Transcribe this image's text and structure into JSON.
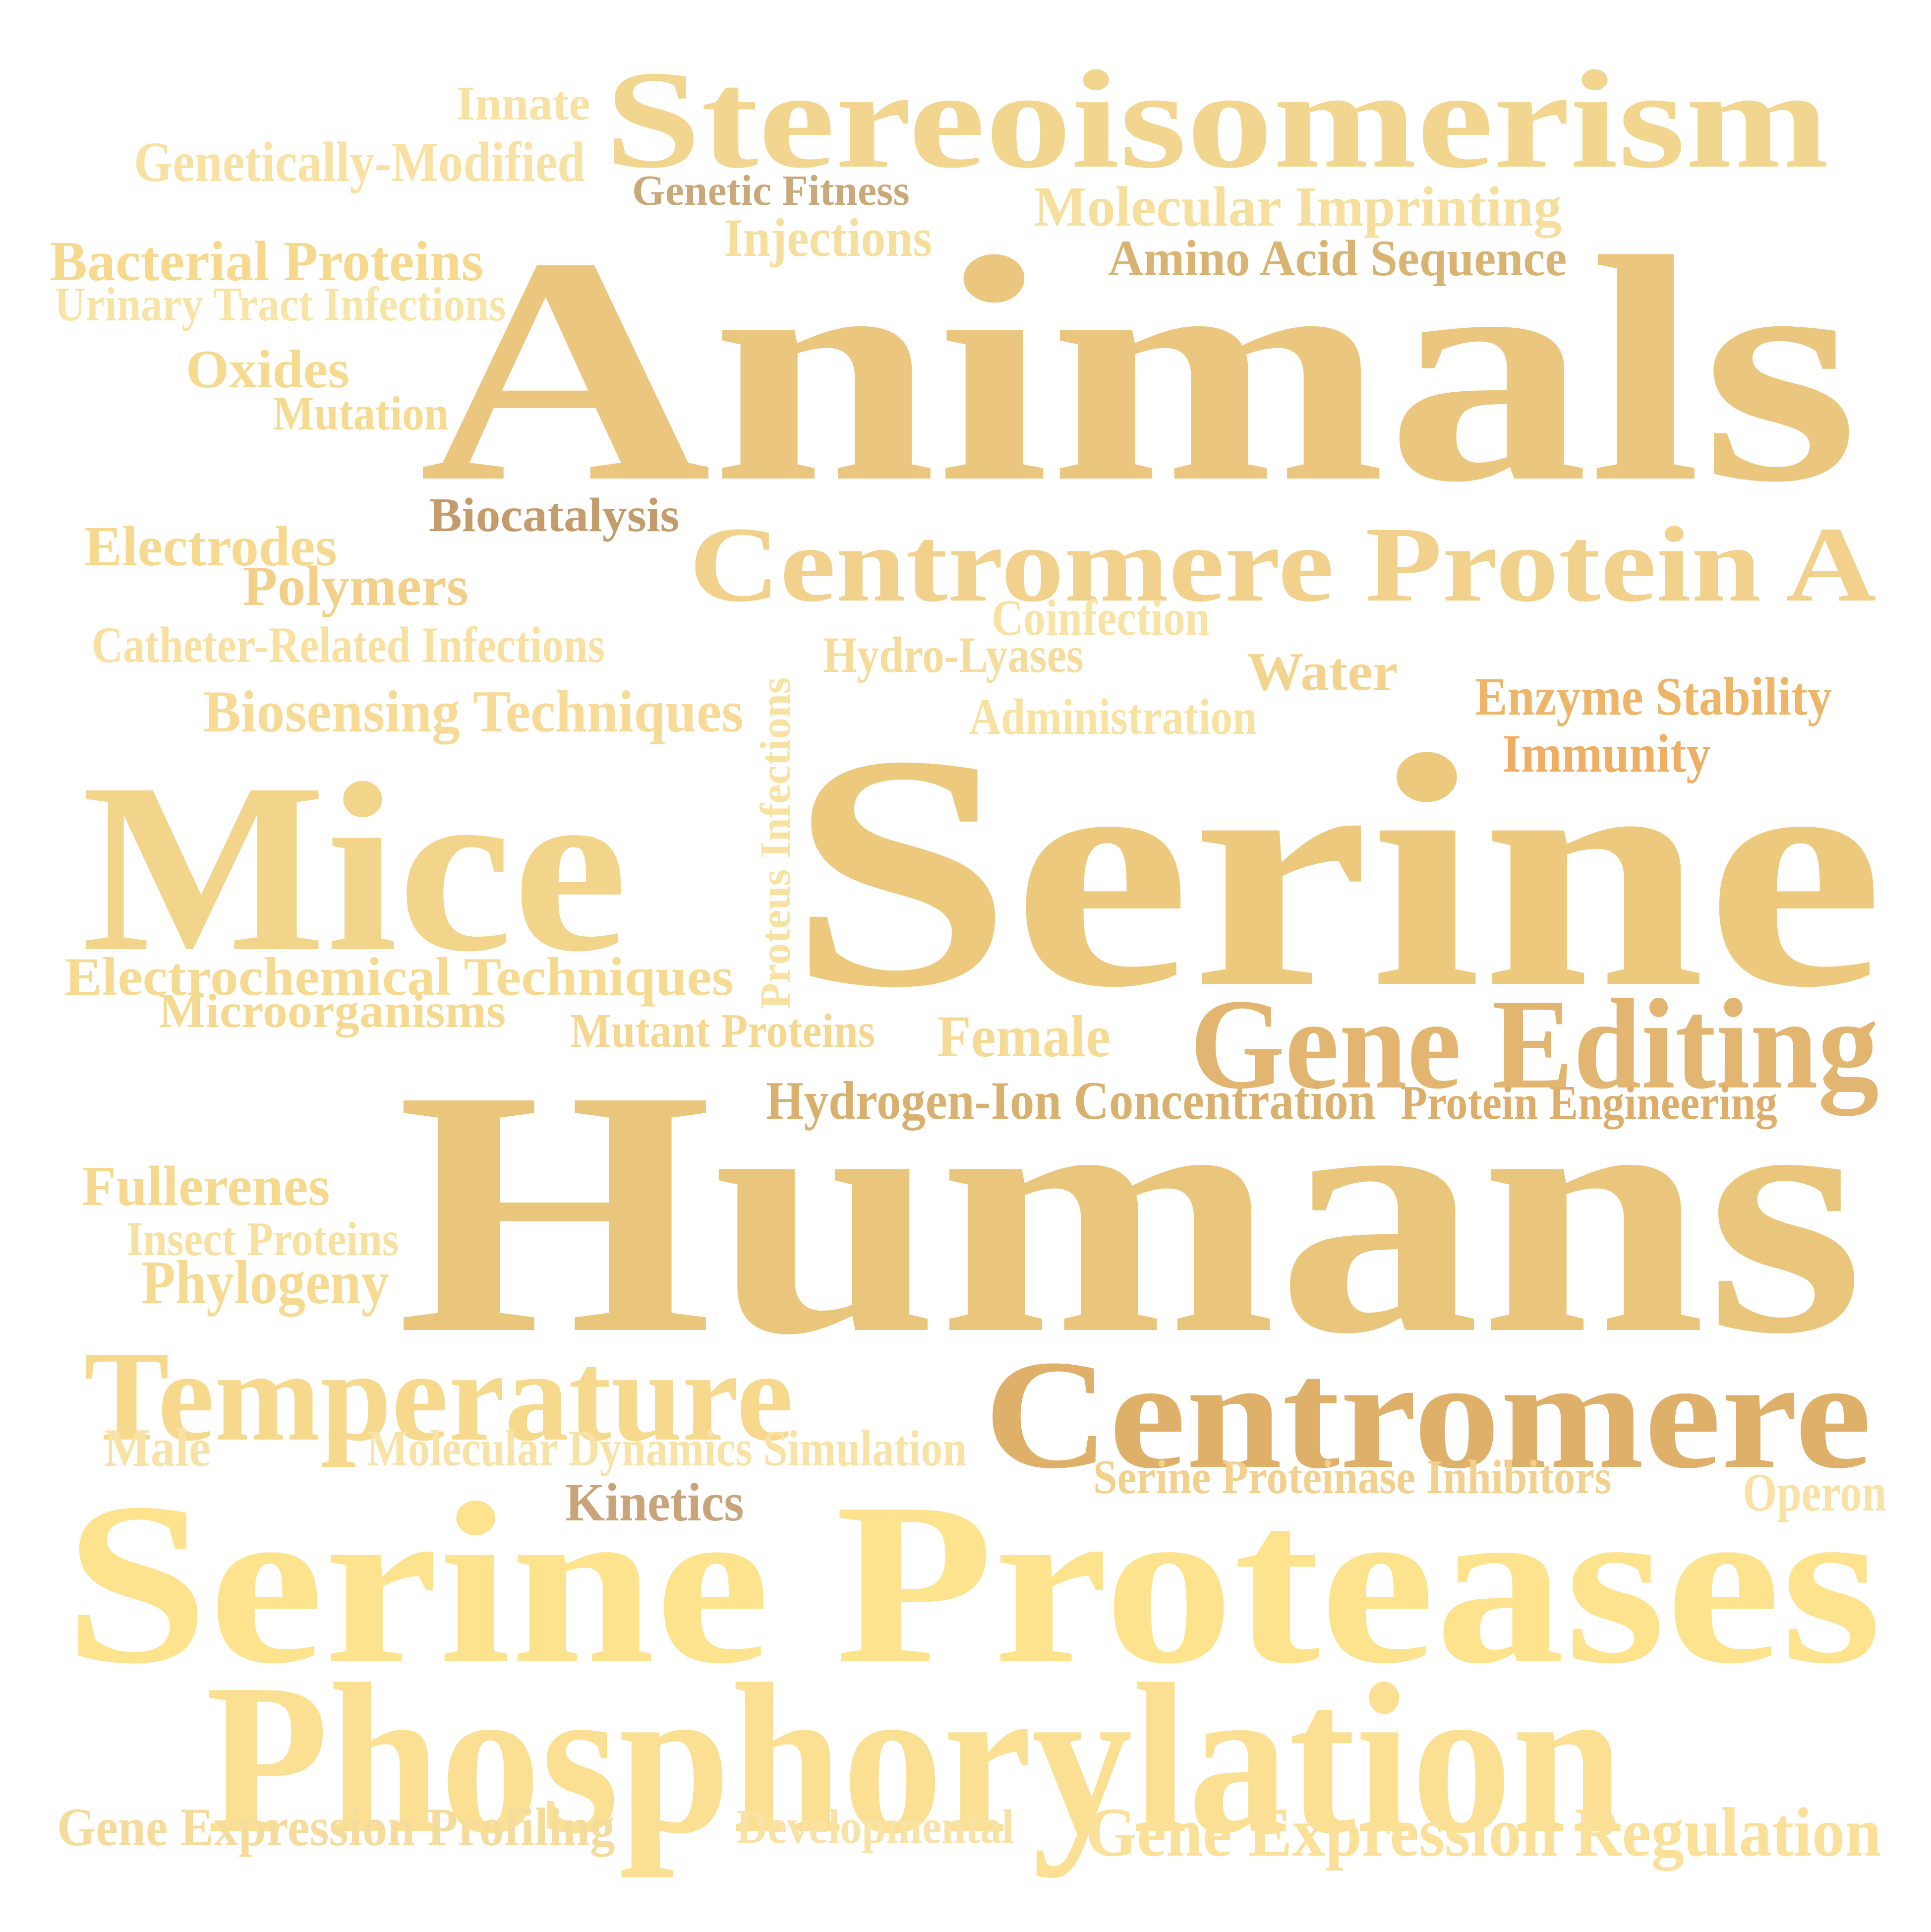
{
  "word_cloud": {
    "words": [
      {
        "text": "Stereoisomerism",
        "color": "#f2d68f"
      },
      {
        "text": "Innate",
        "color": "#f8e1a2"
      },
      {
        "text": "Genetically-Modified",
        "color": "#f8e1a2"
      },
      {
        "text": "Genetic Fitness",
        "color": "#c9a87a"
      },
      {
        "text": "Molecular Imprinting",
        "color": "#f6de9c"
      },
      {
        "text": "Injections",
        "color": "#f6de9c"
      },
      {
        "text": "Amino Acid Sequence",
        "color": "#d8b372"
      },
      {
        "text": "Bacterial Proteins",
        "color": "#f6d98d"
      },
      {
        "text": "Urinary Tract Infections",
        "color": "#f8e4a6"
      },
      {
        "text": "Animals",
        "color": "#ebc67e"
      },
      {
        "text": "Oxides",
        "color": "#f6da90"
      },
      {
        "text": "Mutation",
        "color": "#f6da90"
      },
      {
        "text": "Biocatalysis",
        "color": "#c49c6c"
      },
      {
        "text": "Electrodes",
        "color": "#f6d98e"
      },
      {
        "text": "Polymers",
        "color": "#f2d08a"
      },
      {
        "text": "Centromere Protein A",
        "color": "#f1d18b"
      },
      {
        "text": "Coinfection",
        "color": "#f8e2a4"
      },
      {
        "text": "Catheter-Related Infections",
        "color": "#f8e0a0"
      },
      {
        "text": "Hydro-Lyases",
        "color": "#f6dc9a"
      },
      {
        "text": "Water",
        "color": "#f3d48e"
      },
      {
        "text": "Enzyme Stability",
        "color": "#ecb567"
      },
      {
        "text": "Biosensing Techniques",
        "color": "#f6da96"
      },
      {
        "text": "Administration",
        "color": "#f8e2a2"
      },
      {
        "text": "Immunity",
        "color": "#eeae63"
      },
      {
        "text": "Proteus Infections",
        "color": "#f8e2a2"
      },
      {
        "text": "Mice",
        "color": "#f2d48b"
      },
      {
        "text": "Serine",
        "color": "#edc97e"
      },
      {
        "text": "Electrochemical Techniques",
        "color": "#f6da92"
      },
      {
        "text": "Microorganisms",
        "color": "#f6d990"
      },
      {
        "text": "Mutant Proteins",
        "color": "#f4d790"
      },
      {
        "text": "Female",
        "color": "#f6db96"
      },
      {
        "text": "Gene Editing",
        "color": "#e2b570"
      },
      {
        "text": "Humans",
        "color": "#eac57c"
      },
      {
        "text": "Hydrogen-Ion Concentration",
        "color": "#d9b06e"
      },
      {
        "text": "Protein Engineering",
        "color": "#ddad69"
      },
      {
        "text": "Fullerenes",
        "color": "#f6d98e"
      },
      {
        "text": "Insect Proteins",
        "color": "#f8e0a0"
      },
      {
        "text": "Phylogeny",
        "color": "#f6da92"
      },
      {
        "text": "Temperature",
        "color": "#f6d98d"
      },
      {
        "text": "Centromere",
        "color": "#deb06a"
      },
      {
        "text": "Male",
        "color": "#f8e2a6"
      },
      {
        "text": "Molecular Dynamics Simulation",
        "color": "#f8e2a6"
      },
      {
        "text": "Kinetics",
        "color": "#c9a47a"
      },
      {
        "text": "Serine Proteinase Inhibitors",
        "color": "#f2d08e"
      },
      {
        "text": "Operon",
        "color": "#f8e2a6"
      },
      {
        "text": "Serine Proteases",
        "color": "#fde38e"
      },
      {
        "text": "Phosphorylation",
        "color": "#fbe094"
      },
      {
        "text": "Gene Expression Profiling",
        "color": "#f6dc9c"
      },
      {
        "text": "Developmental",
        "color": "#f8e2a6"
      },
      {
        "text": "Gene Expression Regulation",
        "color": "#fbe09a"
      }
    ]
  }
}
